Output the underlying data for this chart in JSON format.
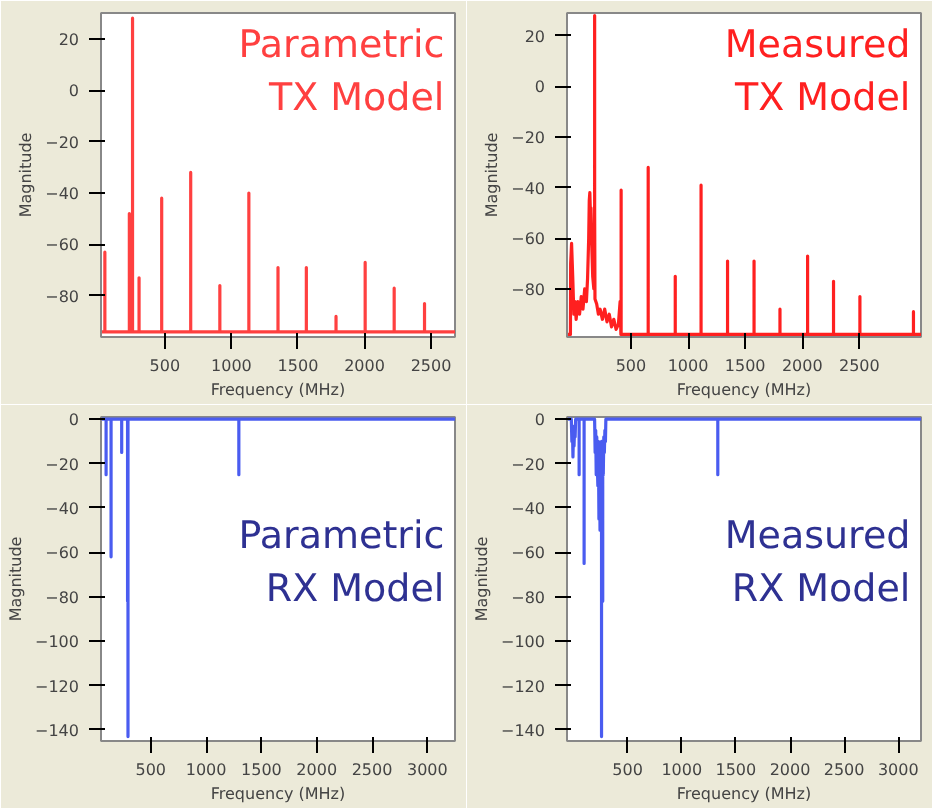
{
  "chart_data": [
    {
      "type": "line",
      "xlabel": "Frequency (MHz)",
      "ylabel": "Magnitude",
      "annotations": [
        "Parametric\nTX Model"
      ],
      "xlim": [
        20,
        2680
      ],
      "ylim": [
        -96,
        30
      ],
      "xticks": [
        500,
        1000,
        1500,
        2000,
        2500
      ],
      "yticks": [
        -80,
        -60,
        -40,
        -20,
        0,
        20
      ],
      "grid": false,
      "series": [
        {
          "color": "#ff4040",
          "x": [
            20,
            49,
            49,
            49,
            233,
            233,
            233,
            257,
            257,
            257,
            306,
            306,
            306,
            476,
            476,
            476,
            694,
            694,
            694,
            913,
            913,
            913,
            1131,
            1131,
            1131,
            1350,
            1350,
            1350,
            1563,
            1563,
            1563,
            1786,
            1786,
            1786,
            2005,
            2005,
            2005,
            2223,
            2223,
            2223,
            2451,
            2451,
            2451,
            2680
          ],
          "values": [
            -94,
            -94,
            -63,
            -94,
            -94,
            -48,
            -94,
            -94,
            28,
            -94,
            -94,
            -73,
            -94,
            -94,
            -42,
            -94,
            -94,
            -32,
            -94,
            -94,
            -76,
            -94,
            -94,
            -40,
            -94,
            -94,
            -69,
            -94,
            -94,
            -69,
            -94,
            -94,
            -88,
            -94,
            -94,
            -67,
            -94,
            -94,
            -77,
            -94,
            -94,
            -83,
            -94,
            -94
          ]
        }
      ]
    },
    {
      "type": "line",
      "xlabel": "Frequency (MHz)",
      "ylabel": "Magnitude",
      "annotations": [
        "Measured\nTX Model"
      ],
      "xlim": [
        -60,
        3040
      ],
      "ylim": [
        -99,
        29
      ],
      "xticks": [
        500,
        1000,
        1500,
        2000,
        2500
      ],
      "yticks": [
        -80,
        -60,
        -40,
        -20,
        0,
        20
      ],
      "grid": false,
      "series": [
        {
          "color": "#ff2020",
          "x": [
            -60,
            -30,
            -28,
            -20,
            -10,
            0,
            10,
            20,
            35,
            50,
            65,
            80,
            95,
            110,
            120,
            130,
            135,
            140,
            145,
            150,
            155,
            165,
            175,
            182,
            182,
            182,
            185,
            200,
            215,
            230,
            250,
            270,
            290,
            310,
            330,
            350,
            370,
            390,
            405,
            412,
            414,
            414,
            414,
            651,
            651,
            651,
            888,
            888,
            888,
            1114,
            1114,
            1114,
            1346,
            1346,
            1346,
            1578,
            1578,
            1578,
            1805,
            1805,
            1805,
            2047,
            2047,
            2047,
            2274,
            2274,
            2274,
            2505,
            2505,
            2505,
            2974,
            2974,
            2974,
            3040
          ],
          "values": [
            -98,
            -98,
            -70,
            -62,
            -75,
            -90,
            -85,
            -92,
            -85,
            -90,
            -83,
            -88,
            -80,
            -85,
            -76,
            -60,
            -45,
            -42,
            -50,
            -48,
            -60,
            -75,
            -80,
            -48,
            28,
            -48,
            -84,
            -86,
            -90,
            -88,
            -92,
            -88,
            -93,
            -90,
            -95,
            -92,
            -96,
            -94,
            -85,
            -98,
            -98,
            -41,
            -98,
            -98,
            -32,
            -98,
            -98,
            -75,
            -98,
            -98,
            -39,
            -98,
            -98,
            -69,
            -98,
            -98,
            -69,
            -98,
            -98,
            -88,
            -98,
            -98,
            -67,
            -98,
            -98,
            -77,
            -98,
            -98,
            -83,
            -98,
            -98,
            -89,
            -98,
            -98
          ]
        }
      ]
    },
    {
      "type": "line",
      "xlabel": "Frequency (MHz)",
      "ylabel": "Magnitude",
      "annotations": [
        "Parametric\nRX Model"
      ],
      "xlim": [
        50,
        3250
      ],
      "ylim": [
        -145,
        1
      ],
      "xticks": [
        500,
        1000,
        1500,
        2000,
        2500,
        3000
      ],
      "yticks": [
        -140,
        -120,
        -100,
        -80,
        -60,
        -40,
        -20,
        0
      ],
      "grid": false,
      "series": [
        {
          "color": "#4a5cf0",
          "x": [
            50,
            96,
            96,
            96,
            141,
            141,
            141,
            237,
            237,
            237,
            290,
            290,
            290,
            294,
            294,
            294,
            1296,
            1296,
            1296,
            3250
          ],
          "values": [
            0,
            0,
            -25,
            0,
            0,
            -62,
            0,
            0,
            -15,
            0,
            0,
            -82,
            0,
            0,
            -143,
            0,
            0,
            -25,
            0,
            0
          ]
        }
      ]
    },
    {
      "type": "line",
      "xlabel": "Frequency (MHz)",
      "ylabel": "Magnitude",
      "annotations": [
        "Measured\nRX Model"
      ],
      "xlim": [
        -60,
        3210
      ],
      "ylim": [
        -145,
        1
      ],
      "xticks": [
        500,
        1000,
        1500,
        2000,
        2500,
        3000
      ],
      "yticks": [
        -140,
        -120,
        -100,
        -80,
        -60,
        -40,
        -20,
        0
      ],
      "grid": false,
      "series": [
        {
          "color": "#4a5cf0",
          "x": [
            -60,
            -20,
            -15,
            -10,
            -5,
            0,
            5,
            10,
            15,
            20,
            52,
            52,
            52,
            98,
            98,
            98,
            195,
            200,
            205,
            210,
            215,
            220,
            225,
            230,
            235,
            240,
            245,
            250,
            255,
            259,
            259,
            259,
            265,
            270,
            270,
            270,
            275,
            280,
            285,
            290,
            295,
            299,
            1333,
            1333,
            1333,
            3210
          ],
          "values": [
            0,
            0,
            -10,
            -3,
            -17,
            -5,
            -12,
            -4,
            -8,
            0,
            0,
            -25,
            0,
            0,
            -65,
            0,
            0,
            -15,
            -5,
            -25,
            -8,
            -20,
            -30,
            -10,
            -45,
            -12,
            -50,
            -20,
            -15,
            -10,
            -143,
            -10,
            -35,
            -30,
            -82,
            -20,
            -25,
            -8,
            -15,
            -5,
            -10,
            0,
            0,
            -25,
            0,
            0
          ]
        }
      ]
    }
  ]
}
